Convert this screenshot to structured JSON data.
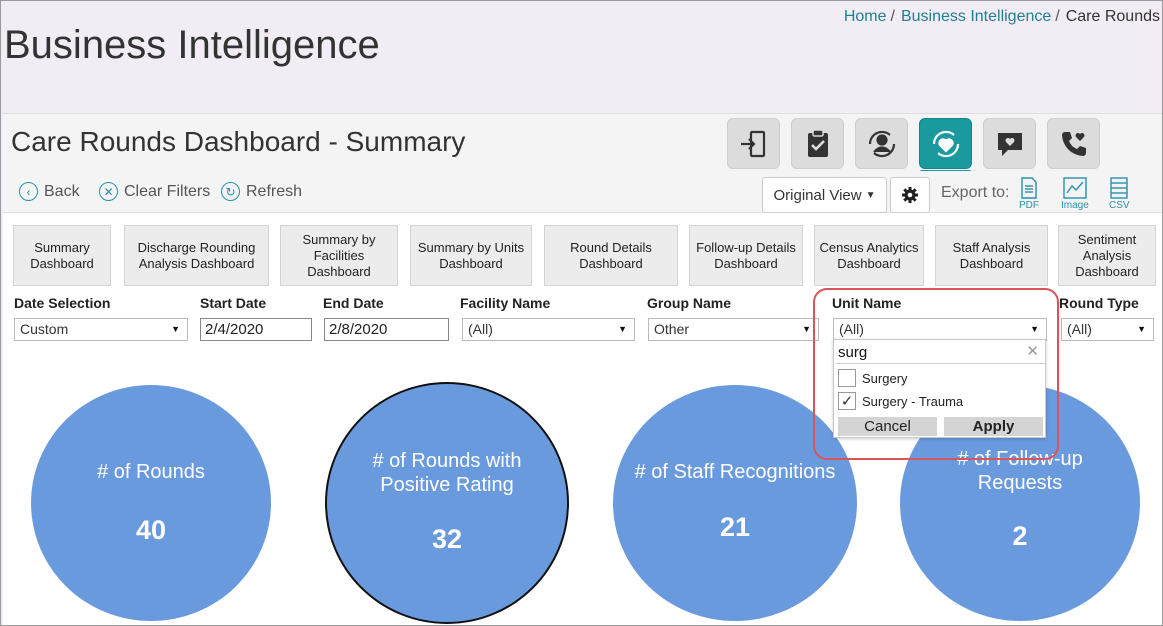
{
  "breadcrumb": {
    "home": "Home",
    "section": "Business Intelligence",
    "current": "Care Rounds"
  },
  "page_title": "Business Intelligence",
  "panel_title": "Care Rounds Dashboard - Summary",
  "nav_icons": [
    "door-enter-icon",
    "clipboard-check-icon",
    "user-sync-icon",
    "heart-sync-icon",
    "chat-heart-icon",
    "phone-heart-icon"
  ],
  "toolbar": {
    "back": "Back",
    "clear_filters": "Clear Filters",
    "refresh": "Refresh",
    "view": "Original View",
    "export_label": "Export to:",
    "export": {
      "pdf": "PDF",
      "image": "Image",
      "csv": "CSV"
    }
  },
  "tabs": [
    "Summary Dashboard",
    "Discharge Rounding Analysis Dashboard",
    "Summary by Facilities Dashboard",
    "Summary by Units Dashboard",
    "Round Details Dashboard",
    "Follow-up Details Dashboard",
    "Census Analytics Dashboard",
    "Staff Analysis Dashboard",
    "Sentiment Analysis Dashboard"
  ],
  "filters": {
    "date_selection": {
      "label": "Date Selection",
      "value": "Custom"
    },
    "start_date": {
      "label": "Start Date",
      "value": "2/4/2020"
    },
    "end_date": {
      "label": "End Date",
      "value": "2/8/2020"
    },
    "facility": {
      "label": "Facility Name",
      "value": "(All)"
    },
    "group": {
      "label": "Group Name",
      "value": "Other"
    },
    "unit": {
      "label": "Unit Name",
      "value": "(All)"
    },
    "round_type": {
      "label": "Round Type",
      "value": "(All)"
    }
  },
  "unit_dropdown": {
    "search": "surg",
    "options": [
      {
        "label": "Surgery",
        "checked": false
      },
      {
        "label": "Surgery - Trauma",
        "checked": true
      }
    ],
    "cancel": "Cancel",
    "apply": "Apply"
  },
  "metrics": [
    {
      "title": "# of Rounds",
      "value": "40"
    },
    {
      "title": "# of Rounds with Positive Rating",
      "value": "32"
    },
    {
      "title": "# of Staff Recognitions",
      "value": "21"
    },
    {
      "title": "# of Follow-up Requests",
      "value": "2"
    }
  ],
  "colors": {
    "accent": "#1a9a9f",
    "circle": "#6a9ade",
    "highlight": "#d9545c",
    "link": "#1f7f93"
  }
}
